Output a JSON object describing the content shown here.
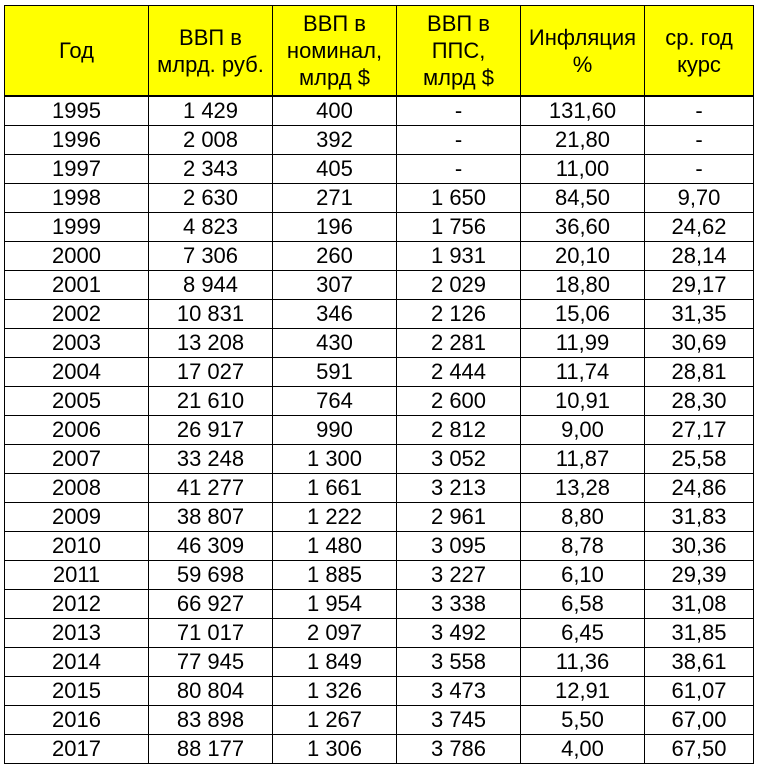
{
  "chart_data": {
    "type": "table",
    "headers": [
      [
        "Год"
      ],
      [
        "ВВП в",
        "млрд. руб."
      ],
      [
        "ВВП в",
        "номинал,",
        "млрд $"
      ],
      [
        "ВВП в",
        "ППС,",
        "млрд $"
      ],
      [
        "Инфляция",
        "%"
      ],
      [
        "ср. год",
        "курс"
      ]
    ],
    "rows": [
      [
        "1995",
        "1 429",
        "400",
        "-",
        "131,60",
        "-"
      ],
      [
        "1996",
        "2 008",
        "392",
        "-",
        "21,80",
        "-"
      ],
      [
        "1997",
        "2 343",
        "405",
        "-",
        "11,00",
        "-"
      ],
      [
        "1998",
        "2 630",
        "271",
        "1 650",
        "84,50",
        "9,70"
      ],
      [
        "1999",
        "4 823",
        "196",
        "1 756",
        "36,60",
        "24,62"
      ],
      [
        "2000",
        "7 306",
        "260",
        "1 931",
        "20,10",
        "28,14"
      ],
      [
        "2001",
        "8 944",
        "307",
        "2 029",
        "18,80",
        "29,17"
      ],
      [
        "2002",
        "10 831",
        "346",
        "2 126",
        "15,06",
        "31,35"
      ],
      [
        "2003",
        "13 208",
        "430",
        "2 281",
        "11,99",
        "30,69"
      ],
      [
        "2004",
        "17 027",
        "591",
        "2 444",
        "11,74",
        "28,81"
      ],
      [
        "2005",
        "21 610",
        "764",
        "2 600",
        "10,91",
        "28,30"
      ],
      [
        "2006",
        "26 917",
        "990",
        "2 812",
        "9,00",
        "27,17"
      ],
      [
        "2007",
        "33 248",
        "1 300",
        "3 052",
        "11,87",
        "25,58"
      ],
      [
        "2008",
        "41 277",
        "1 661",
        "3 213",
        "13,28",
        "24,86"
      ],
      [
        "2009",
        "38 807",
        "1 222",
        "2 961",
        "8,80",
        "31,83"
      ],
      [
        "2010",
        "46 309",
        "1 480",
        "3 095",
        "8,78",
        "30,36"
      ],
      [
        "2011",
        "59 698",
        "1 885",
        "3 227",
        "6,10",
        "29,39"
      ],
      [
        "2012",
        "66 927",
        "1 954",
        "3 338",
        "6,58",
        "31,08"
      ],
      [
        "2013",
        "71 017",
        "2 097",
        "3 492",
        "6,45",
        "31,85"
      ],
      [
        "2014",
        "77 945",
        "1 849",
        "3 558",
        "11,36",
        "38,61"
      ],
      [
        "2015",
        "80 804",
        "1 326",
        "3 473",
        "12,91",
        "61,07"
      ],
      [
        "2016",
        "83 898",
        "1 267",
        "3 745",
        "5,50",
        "67,00"
      ],
      [
        "2017",
        "88 177",
        "1 306",
        "3 786",
        "4,00",
        "67,50"
      ]
    ],
    "header_color": "#ffff00"
  }
}
